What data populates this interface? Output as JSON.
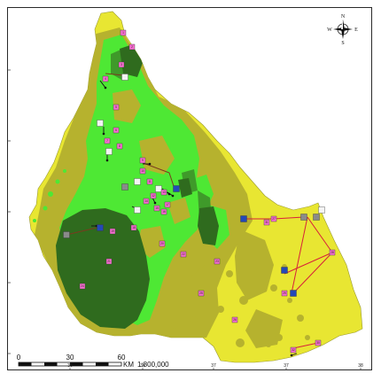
{
  "map": {
    "colors": {
      "outside": "#ffffff",
      "yellow": "#e8e632",
      "olive": "#b6b22e",
      "lime": "#4ee834",
      "dark_green": "#2f6b1e",
      "mid_green": "#3f9a2a",
      "marker_pink": "#f76fd0",
      "marker_blue": "#2448b8",
      "marker_gray": "#8a8a8a",
      "marker_white": "#f4f4f4",
      "route_red": "#d8203a",
      "route_brown": "#7a3a1e"
    },
    "x_ticks": [
      "36",
      "36",
      "37",
      "37",
      "38"
    ],
    "scale_bar": {
      "labels": [
        "0",
        "30",
        "60"
      ],
      "unit": "KM",
      "ratio": "1:800,000"
    },
    "compass": {
      "north": "N",
      "south": "S",
      "east": "E",
      "west": "W"
    },
    "point_labels": [
      "1",
      "2",
      "3",
      "4",
      "5",
      "6",
      "7",
      "8",
      "9",
      "10",
      "11",
      "12",
      "13",
      "14",
      "15",
      "16",
      "17",
      "18",
      "19",
      "20",
      "21",
      "22",
      "23",
      "24",
      "25",
      "26",
      "27",
      "28",
      "29",
      "30",
      "31",
      "32",
      "33",
      "34",
      "35",
      "36"
    ]
  }
}
